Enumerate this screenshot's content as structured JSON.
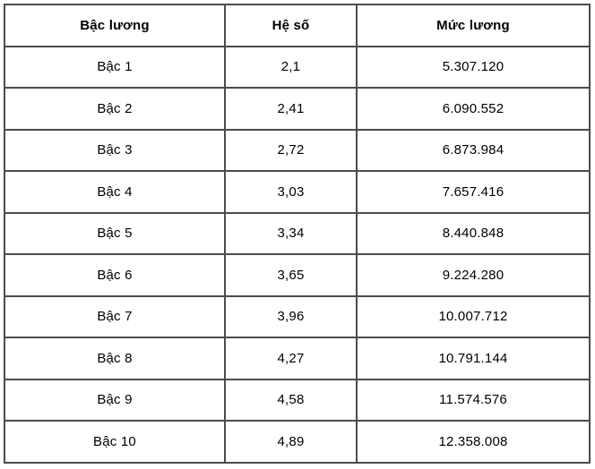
{
  "table": {
    "columns": [
      "Bậc lương",
      "Hệ số",
      "Mức lương"
    ],
    "rows": [
      {
        "grade": "Bậc 1",
        "coefficient": "2,1",
        "salary": "5.307.120"
      },
      {
        "grade": "Bậc 2",
        "coefficient": "2,41",
        "salary": "6.090.552"
      },
      {
        "grade": "Bậc 3",
        "coefficient": "2,72",
        "salary": "6.873.984"
      },
      {
        "grade": "Bậc 4",
        "coefficient": "3,03",
        "salary": "7.657.416"
      },
      {
        "grade": "Bậc 5",
        "coefficient": "3,34",
        "salary": "8.440.848"
      },
      {
        "grade": "Bậc 6",
        "coefficient": "3,65",
        "salary": "9.224.280"
      },
      {
        "grade": "Bậc 7",
        "coefficient": "3,96",
        "salary": "10.007.712"
      },
      {
        "grade": "Bậc 8",
        "coefficient": "4,27",
        "salary": "10.791.144"
      },
      {
        "grade": "Bậc 9",
        "coefficient": "4,58",
        "salary": "11.574.576"
      },
      {
        "grade": "Bậc 10",
        "coefficient": "4,89",
        "salary": "12.358.008"
      }
    ]
  },
  "colors": {
    "border": "#4c4c4c",
    "text": "#000000",
    "background": "#ffffff"
  }
}
